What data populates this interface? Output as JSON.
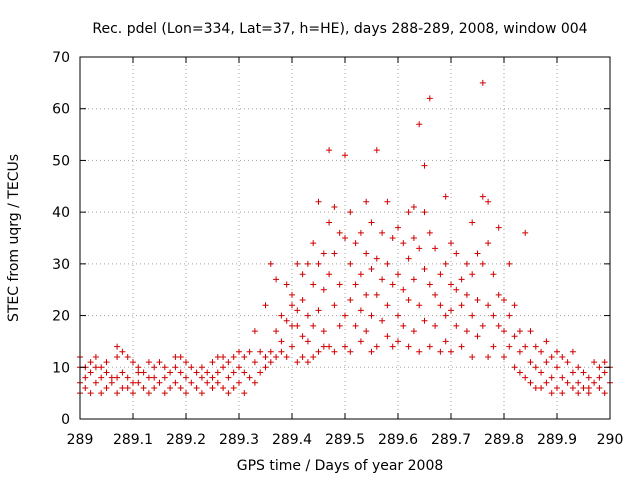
{
  "chart_data": {
    "type": "scatter",
    "title": "Rec. pdel (Lon=334, Lat=37, h=HE), days 288-289, 2008, window 004",
    "xlabel": "GPS time / Days of year 2008",
    "ylabel": "STEC from uqrg / TECUs",
    "xlim": [
      289,
      290
    ],
    "ylim": [
      0,
      70
    ],
    "xticks": [
      289,
      289.1,
      289.2,
      289.3,
      289.4,
      289.5,
      289.6,
      289.7,
      289.8,
      289.9,
      290
    ],
    "xtick_labels": [
      "289",
      "289.1",
      "289.2",
      "289.3",
      "289.4",
      "289.5",
      "289.6",
      "289.7",
      "289.8",
      "289.9",
      "290"
    ],
    "yticks": [
      0,
      10,
      20,
      30,
      40,
      50,
      60,
      70
    ],
    "ytick_labels": [
      "0",
      "10",
      "20",
      "30",
      "40",
      "50",
      "60",
      "70"
    ],
    "grid": true,
    "legend": "none",
    "marker": "plus",
    "color": "#d00000",
    "points": [
      [
        289.0,
        10
      ],
      [
        289.0,
        12
      ],
      [
        289.0,
        7
      ],
      [
        289.0,
        5
      ],
      [
        289.01,
        10
      ],
      [
        289.01,
        8
      ],
      [
        289.01,
        6
      ],
      [
        289.02,
        11
      ],
      [
        289.02,
        9
      ],
      [
        289.02,
        5
      ],
      [
        289.03,
        12
      ],
      [
        289.03,
        10
      ],
      [
        289.03,
        7
      ],
      [
        289.04,
        10
      ],
      [
        289.04,
        8
      ],
      [
        289.04,
        5
      ],
      [
        289.05,
        11
      ],
      [
        289.05,
        9
      ],
      [
        289.05,
        6
      ],
      [
        289.06,
        8
      ],
      [
        289.06,
        7
      ],
      [
        289.07,
        14
      ],
      [
        289.07,
        12
      ],
      [
        289.07,
        8
      ],
      [
        289.07,
        5
      ],
      [
        289.08,
        13
      ],
      [
        289.08,
        9
      ],
      [
        289.08,
        6
      ],
      [
        289.09,
        12
      ],
      [
        289.09,
        8
      ],
      [
        289.09,
        6
      ],
      [
        289.1,
        11
      ],
      [
        289.1,
        7
      ],
      [
        289.1,
        5
      ],
      [
        289.11,
        10
      ],
      [
        289.11,
        9
      ],
      [
        289.11,
        7
      ],
      [
        289.12,
        9
      ],
      [
        289.12,
        6
      ],
      [
        289.13,
        11
      ],
      [
        289.13,
        8
      ],
      [
        289.13,
        5
      ],
      [
        289.14,
        10
      ],
      [
        289.14,
        8
      ],
      [
        289.14,
        6
      ],
      [
        289.15,
        11
      ],
      [
        289.15,
        7
      ],
      [
        289.16,
        10
      ],
      [
        289.16,
        8
      ],
      [
        289.16,
        5
      ],
      [
        289.17,
        9
      ],
      [
        289.17,
        6
      ],
      [
        289.18,
        12
      ],
      [
        289.18,
        10
      ],
      [
        289.18,
        7
      ],
      [
        289.19,
        12
      ],
      [
        289.19,
        9
      ],
      [
        289.19,
        6
      ],
      [
        289.2,
        11
      ],
      [
        289.2,
        8
      ],
      [
        289.2,
        5
      ],
      [
        289.21,
        10
      ],
      [
        289.21,
        7
      ],
      [
        289.22,
        9
      ],
      [
        289.22,
        6
      ],
      [
        289.23,
        10
      ],
      [
        289.23,
        8
      ],
      [
        289.23,
        5
      ],
      [
        289.24,
        9
      ],
      [
        289.24,
        7
      ],
      [
        289.25,
        11
      ],
      [
        289.25,
        8
      ],
      [
        289.25,
        6
      ],
      [
        289.26,
        12
      ],
      [
        289.26,
        9
      ],
      [
        289.26,
        7
      ],
      [
        289.27,
        12
      ],
      [
        289.27,
        10
      ],
      [
        289.27,
        6
      ],
      [
        289.28,
        11
      ],
      [
        289.28,
        8
      ],
      [
        289.28,
        5
      ],
      [
        289.29,
        12
      ],
      [
        289.29,
        9
      ],
      [
        289.29,
        6
      ],
      [
        289.3,
        13
      ],
      [
        289.3,
        10
      ],
      [
        289.3,
        7
      ],
      [
        289.31,
        12
      ],
      [
        289.31,
        9
      ],
      [
        289.31,
        5
      ],
      [
        289.32,
        13
      ],
      [
        289.32,
        8
      ],
      [
        289.33,
        11
      ],
      [
        289.33,
        7
      ],
      [
        289.33,
        17
      ],
      [
        289.34,
        13
      ],
      [
        289.34,
        9
      ],
      [
        289.35,
        22
      ],
      [
        289.35,
        12
      ],
      [
        289.35,
        10
      ],
      [
        289.36,
        30
      ],
      [
        289.36,
        13
      ],
      [
        289.36,
        11
      ],
      [
        289.37,
        27
      ],
      [
        289.37,
        17
      ],
      [
        289.37,
        12
      ],
      [
        289.38,
        20
      ],
      [
        289.38,
        15
      ],
      [
        289.38,
        13
      ],
      [
        289.39,
        26
      ],
      [
        289.39,
        19
      ],
      [
        289.39,
        12
      ],
      [
        289.4,
        24
      ],
      [
        289.4,
        22
      ],
      [
        289.4,
        18
      ],
      [
        289.4,
        14
      ],
      [
        289.41,
        30
      ],
      [
        289.41,
        21
      ],
      [
        289.41,
        18
      ],
      [
        289.41,
        11
      ],
      [
        289.42,
        28
      ],
      [
        289.42,
        23
      ],
      [
        289.42,
        16
      ],
      [
        289.42,
        12
      ],
      [
        289.43,
        30
      ],
      [
        289.43,
        20
      ],
      [
        289.43,
        15
      ],
      [
        289.43,
        11
      ],
      [
        289.44,
        34
      ],
      [
        289.44,
        26
      ],
      [
        289.44,
        18
      ],
      [
        289.44,
        12
      ],
      [
        289.45,
        42
      ],
      [
        289.45,
        30
      ],
      [
        289.45,
        21
      ],
      [
        289.45,
        13
      ],
      [
        289.46,
        32
      ],
      [
        289.46,
        25
      ],
      [
        289.46,
        17
      ],
      [
        289.46,
        14
      ],
      [
        289.47,
        52
      ],
      [
        289.47,
        38
      ],
      [
        289.47,
        28
      ],
      [
        289.47,
        14
      ],
      [
        289.48,
        41
      ],
      [
        289.48,
        32
      ],
      [
        289.48,
        22
      ],
      [
        289.48,
        13
      ],
      [
        289.49,
        36
      ],
      [
        289.49,
        26
      ],
      [
        289.49,
        18
      ],
      [
        289.5,
        51
      ],
      [
        289.5,
        35
      ],
      [
        289.5,
        20
      ],
      [
        289.5,
        14
      ],
      [
        289.51,
        40
      ],
      [
        289.51,
        30
      ],
      [
        289.51,
        23
      ],
      [
        289.51,
        13
      ],
      [
        289.52,
        34
      ],
      [
        289.52,
        26
      ],
      [
        289.52,
        18
      ],
      [
        289.53,
        36
      ],
      [
        289.53,
        28
      ],
      [
        289.53,
        21
      ],
      [
        289.53,
        15
      ],
      [
        289.54,
        42
      ],
      [
        289.54,
        32
      ],
      [
        289.54,
        24
      ],
      [
        289.54,
        17
      ],
      [
        289.55,
        38
      ],
      [
        289.55,
        29
      ],
      [
        289.55,
        20
      ],
      [
        289.55,
        13
      ],
      [
        289.56,
        52
      ],
      [
        289.56,
        31
      ],
      [
        289.56,
        24
      ],
      [
        289.56,
        14
      ],
      [
        289.57,
        36
      ],
      [
        289.57,
        27
      ],
      [
        289.57,
        19
      ],
      [
        289.58,
        42
      ],
      [
        289.58,
        30
      ],
      [
        289.58,
        22
      ],
      [
        289.58,
        16
      ],
      [
        289.59,
        35
      ],
      [
        289.59,
        26
      ],
      [
        289.59,
        14
      ],
      [
        289.6,
        37
      ],
      [
        289.6,
        28
      ],
      [
        289.6,
        20
      ],
      [
        289.6,
        15
      ],
      [
        289.61,
        34
      ],
      [
        289.61,
        25
      ],
      [
        289.61,
        18
      ],
      [
        289.62,
        40
      ],
      [
        289.62,
        31
      ],
      [
        289.62,
        23
      ],
      [
        289.62,
        14
      ],
      [
        289.63,
        41
      ],
      [
        289.63,
        35
      ],
      [
        289.63,
        27
      ],
      [
        289.63,
        17
      ],
      [
        289.64,
        57
      ],
      [
        289.64,
        33
      ],
      [
        289.64,
        22
      ],
      [
        289.64,
        13
      ],
      [
        289.65,
        49
      ],
      [
        289.65,
        40
      ],
      [
        289.65,
        29
      ],
      [
        289.65,
        19
      ],
      [
        289.66,
        62
      ],
      [
        289.66,
        36
      ],
      [
        289.66,
        26
      ],
      [
        289.66,
        14
      ],
      [
        289.67,
        33
      ],
      [
        289.67,
        24
      ],
      [
        289.67,
        18
      ],
      [
        289.68,
        28
      ],
      [
        289.68,
        22
      ],
      [
        289.68,
        13
      ],
      [
        289.69,
        43
      ],
      [
        289.69,
        30
      ],
      [
        289.69,
        20
      ],
      [
        289.69,
        15
      ],
      [
        289.7,
        34
      ],
      [
        289.7,
        26
      ],
      [
        289.7,
        21
      ],
      [
        289.7,
        13
      ],
      [
        289.71,
        32
      ],
      [
        289.71,
        25
      ],
      [
        289.71,
        18
      ],
      [
        289.72,
        27
      ],
      [
        289.72,
        22
      ],
      [
        289.72,
        14
      ],
      [
        289.73,
        30
      ],
      [
        289.73,
        24
      ],
      [
        289.73,
        17
      ],
      [
        289.74,
        38
      ],
      [
        289.74,
        28
      ],
      [
        289.74,
        20
      ],
      [
        289.74,
        12
      ],
      [
        289.75,
        32
      ],
      [
        289.75,
        23
      ],
      [
        289.75,
        16
      ],
      [
        289.76,
        65
      ],
      [
        289.76,
        43
      ],
      [
        289.76,
        30
      ],
      [
        289.76,
        18
      ],
      [
        289.77,
        42
      ],
      [
        289.77,
        34
      ],
      [
        289.77,
        22
      ],
      [
        289.77,
        12
      ],
      [
        289.78,
        28
      ],
      [
        289.78,
        20
      ],
      [
        289.78,
        14
      ],
      [
        289.79,
        37
      ],
      [
        289.79,
        24
      ],
      [
        289.79,
        18
      ],
      [
        289.8,
        23
      ],
      [
        289.8,
        17
      ],
      [
        289.8,
        12
      ],
      [
        289.81,
        30
      ],
      [
        289.81,
        20
      ],
      [
        289.81,
        14
      ],
      [
        289.82,
        22
      ],
      [
        289.82,
        16
      ],
      [
        289.82,
        10
      ],
      [
        289.83,
        17
      ],
      [
        289.83,
        13
      ],
      [
        289.83,
        9
      ],
      [
        289.84,
        36
      ],
      [
        289.84,
        14
      ],
      [
        289.84,
        8
      ],
      [
        289.85,
        17
      ],
      [
        289.85,
        11
      ],
      [
        289.85,
        7
      ],
      [
        289.86,
        14
      ],
      [
        289.86,
        10
      ],
      [
        289.86,
        6
      ],
      [
        289.87,
        13
      ],
      [
        289.87,
        9
      ],
      [
        289.87,
        6
      ],
      [
        289.88,
        15
      ],
      [
        289.88,
        11
      ],
      [
        289.88,
        7
      ],
      [
        289.89,
        12
      ],
      [
        289.89,
        8
      ],
      [
        289.89,
        5
      ],
      [
        289.9,
        13
      ],
      [
        289.9,
        10
      ],
      [
        289.9,
        6
      ],
      [
        289.91,
        12
      ],
      [
        289.91,
        8
      ],
      [
        289.91,
        5
      ],
      [
        289.92,
        11
      ],
      [
        289.92,
        7
      ],
      [
        289.93,
        13
      ],
      [
        289.93,
        9
      ],
      [
        289.93,
        6
      ],
      [
        289.94,
        10
      ],
      [
        289.94,
        7
      ],
      [
        289.94,
        5
      ],
      [
        289.95,
        9
      ],
      [
        289.95,
        6
      ],
      [
        289.96,
        8
      ],
      [
        289.96,
        6
      ],
      [
        289.96,
        5
      ],
      [
        289.97,
        11
      ],
      [
        289.97,
        7
      ],
      [
        289.98,
        10
      ],
      [
        289.98,
        8
      ],
      [
        289.98,
        6
      ],
      [
        289.99,
        11
      ],
      [
        289.99,
        9
      ],
      [
        289.99,
        5
      ],
      [
        290.0,
        10
      ],
      [
        290.0,
        7
      ]
    ]
  }
}
